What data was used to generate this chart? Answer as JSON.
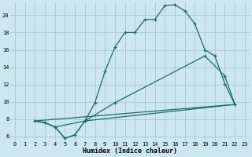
{
  "xlabel": "Humidex (Indice chaleur)",
  "bg_color": "#cce8ee",
  "grid_color": "#aacdd6",
  "line_color": "#1e6b6b",
  "xlim": [
    -0.5,
    23.5
  ],
  "ylim": [
    5.5,
    21.5
  ],
  "yticks": [
    6,
    8,
    10,
    12,
    14,
    16,
    18,
    20
  ],
  "xticks": [
    0,
    1,
    2,
    3,
    4,
    5,
    6,
    7,
    8,
    9,
    10,
    11,
    12,
    13,
    14,
    15,
    16,
    17,
    18,
    19,
    20,
    21,
    22,
    23
  ],
  "line1_x": [
    2,
    3,
    4,
    5,
    6,
    7,
    8,
    9,
    10,
    11,
    12,
    13,
    14,
    15,
    16,
    17,
    18,
    19,
    20,
    21,
    22
  ],
  "line1_y": [
    7.8,
    7.6,
    7.1,
    5.8,
    6.2,
    7.8,
    9.9,
    13.5,
    16.3,
    18.0,
    18.0,
    19.5,
    19.5,
    21.1,
    21.2,
    20.5,
    19.0,
    16.0,
    15.3,
    12.1,
    9.7
  ],
  "line2_x": [
    2,
    3,
    4,
    7,
    10,
    19,
    21,
    22
  ],
  "line2_y": [
    7.8,
    7.6,
    7.1,
    7.8,
    9.9,
    15.3,
    13.0,
    9.7
  ],
  "line3_x": [
    2,
    22
  ],
  "line3_y": [
    7.8,
    9.7
  ],
  "line4_x": [
    2,
    3,
    4,
    5,
    6,
    7,
    22
  ],
  "line4_y": [
    7.8,
    7.6,
    7.1,
    5.8,
    6.2,
    7.8,
    9.7
  ]
}
